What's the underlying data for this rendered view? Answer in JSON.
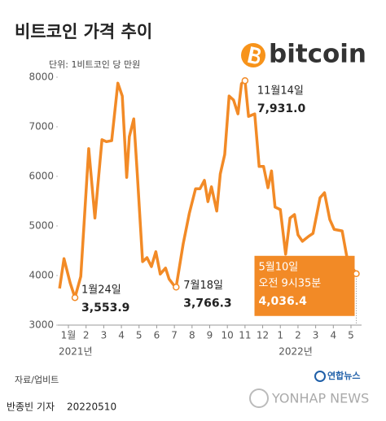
{
  "chart_data": {
    "type": "line",
    "title": "비트코인 가격 추이",
    "subtitle": "단위: 1비트코인 당 만원",
    "logo": "bitcoin",
    "color": "#f28a26",
    "x": [
      -0.5,
      -0.25,
      0.1,
      0.37,
      0.7,
      1.15,
      1.5,
      1.9,
      2.15,
      2.45,
      2.8,
      3.05,
      3.3,
      3.45,
      3.7,
      3.9,
      4.2,
      4.45,
      4.7,
      4.95,
      5.2,
      5.5,
      5.7,
      6.0,
      6.1,
      6.5,
      6.85,
      7.2,
      7.45,
      7.7,
      7.9,
      8.1,
      8.4,
      8.6,
      8.85,
      9.1,
      9.35,
      9.6,
      9.8,
      10.0,
      10.2,
      10.55,
      10.8,
      11.05,
      11.3,
      11.5,
      11.7,
      12.0,
      12.3,
      12.55,
      12.8,
      13.0,
      13.25,
      13.6,
      13.85,
      14.25,
      14.5,
      14.8,
      15.05,
      15.5,
      15.8,
      16.3
    ],
    "values": [
      3740,
      4340,
      3850,
      3553.9,
      3980,
      6560,
      5160,
      6740,
      6700,
      6720,
      7880,
      7620,
      5980,
      6800,
      7160,
      6050,
      4280,
      4360,
      4180,
      4480,
      4030,
      4150,
      3930,
      3790,
      3766.3,
      4640,
      5260,
      5750,
      5750,
      5920,
      5490,
      5790,
      5300,
      6050,
      6440,
      7620,
      7540,
      7260,
      7870,
      7931.0,
      7210,
      7260,
      6200,
      6200,
      5770,
      6110,
      5380,
      5330,
      4430,
      5160,
      5230,
      4820,
      4690,
      4790,
      4850,
      5570,
      5670,
      5130,
      4930,
      4900,
      4310,
      4036.4
    ],
    "value_labels": [
      null,
      null,
      null,
      "3,553.9",
      null,
      null,
      null,
      null,
      null,
      null,
      null,
      null,
      null,
      null,
      null,
      null,
      null,
      null,
      null,
      null,
      null,
      null,
      null,
      null,
      "3,766.3",
      null,
      null,
      null,
      null,
      null,
      null,
      null,
      null,
      null,
      null,
      null,
      null,
      null,
      null,
      "7,931.0",
      null,
      null,
      null,
      null,
      null,
      null,
      null,
      null,
      null,
      null,
      null,
      null,
      null,
      null,
      null,
      null,
      null,
      null,
      null,
      null,
      null,
      "4,036.4"
    ],
    "point_notes": [
      null,
      null,
      null,
      [
        "1월24일"
      ],
      null,
      null,
      null,
      null,
      null,
      null,
      null,
      null,
      null,
      null,
      null,
      null,
      null,
      null,
      null,
      null,
      null,
      null,
      null,
      null,
      [
        "7월18일"
      ],
      null,
      null,
      null,
      null,
      null,
      null,
      null,
      null,
      null,
      null,
      null,
      null,
      null,
      null,
      [
        "11월14일"
      ],
      null,
      null,
      null,
      null,
      null,
      null,
      null,
      null,
      null,
      null,
      null,
      null,
      null,
      null,
      null,
      null,
      null,
      null,
      null,
      null,
      null,
      [
        "5월10일",
        "오전 9시35분"
      ]
    ],
    "xlim": [
      -0.6,
      16.6
    ],
    "xticks": [
      {
        "value": 0,
        "label": "1월"
      },
      {
        "value": 1,
        "label": "2"
      },
      {
        "value": 2,
        "label": "3"
      },
      {
        "value": 3,
        "label": "4"
      },
      {
        "value": 4,
        "label": "5"
      },
      {
        "value": 5,
        "label": "6"
      },
      {
        "value": 6,
        "label": "7"
      },
      {
        "value": 7,
        "label": "8"
      },
      {
        "value": 8,
        "label": "9"
      },
      {
        "value": 9,
        "label": "10"
      },
      {
        "value": 10,
        "label": "11"
      },
      {
        "value": 11,
        "label": "12"
      },
      {
        "value": 12,
        "label": "1"
      },
      {
        "value": 13,
        "label": "2"
      },
      {
        "value": 14,
        "label": "3"
      },
      {
        "value": 15,
        "label": "4"
      },
      {
        "value": 16,
        "label": "5"
      }
    ],
    "year_labels": [
      "2021년",
      "2022년"
    ],
    "ylim": [
      3000,
      8000
    ],
    "yticks": [
      3000,
      4000,
      5000,
      6000,
      7000,
      8000
    ]
  },
  "footer": {
    "source": "자료/업비트",
    "byline": "반종빈 기자",
    "date": "20220510",
    "agency": "연합뉴스",
    "agency_en": "YONHAP NEWS"
  }
}
